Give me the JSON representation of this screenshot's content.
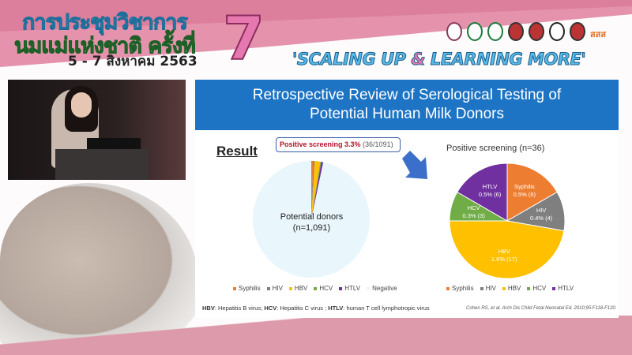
{
  "banner": {
    "thai_line1": "การประชุมวิชาการ",
    "thai_line2": "นมแม่แห่งชาติ ครั้งที่",
    "number": "7",
    "date": "5 - 7 สิงหาคม 2563",
    "slogan_part1": "'SCALING UP ",
    "slogan_amp": "&",
    "slogan_part2": " LEARNING MORE'",
    "logo_text": "สสส"
  },
  "slide": {
    "title_line1": "Retrospective Review of Serological Testing of",
    "title_line2": "Potential Human Milk Donors",
    "result_label": "Result",
    "callout_red": "Positive screening 3.3%",
    "callout_grey": " (36/1091)",
    "footnote": {
      "hbv": "HBV",
      "hbv_text": ": Hepatitis B virus; ",
      "hcv": "HCV",
      "hcv_text": ": Hepatitis C virus ; ",
      "htlv": "HTLV",
      "htlv_text": ": human T cell lymphotropic virus"
    },
    "citation": "Cohen RS, et al. Arch Dis Child Fetal Neonatal Ed. 2010;95:F118-F120."
  },
  "chart_data": [
    {
      "type": "pie",
      "center_label_line1": "Potential donors",
      "center_label_line2": "(n=1,091)",
      "categories": [
        "Syphilis",
        "HIV",
        "HBV",
        "HCV",
        "HTLV",
        "Negative"
      ],
      "values": [
        6,
        4,
        17,
        3,
        6,
        1055
      ],
      "colors": [
        "#ed7d31",
        "#7f7f7f",
        "#ffc000",
        "#70ad47",
        "#7030a0",
        "#e9f6fc"
      ],
      "legend": "bottom"
    },
    {
      "type": "pie",
      "title": "Positive screening (n=36)",
      "categories": [
        "Syphilis",
        "HIV",
        "HBV",
        "HCV",
        "HTLV"
      ],
      "values": [
        6,
        4,
        17,
        3,
        6
      ],
      "labels": [
        [
          "Syphilis",
          "0.5% (6)"
        ],
        [
          "HIV",
          "0.4% (4)"
        ],
        [
          "HBV",
          "1.6% (17)"
        ],
        [
          "HCV",
          "0.3% (3)"
        ],
        [
          "HTLV",
          "0.5% (6)"
        ]
      ],
      "colors": [
        "#ed7d31",
        "#7f7f7f",
        "#ffc000",
        "#70ad47",
        "#7030a0"
      ],
      "legend": "bottom"
    }
  ]
}
